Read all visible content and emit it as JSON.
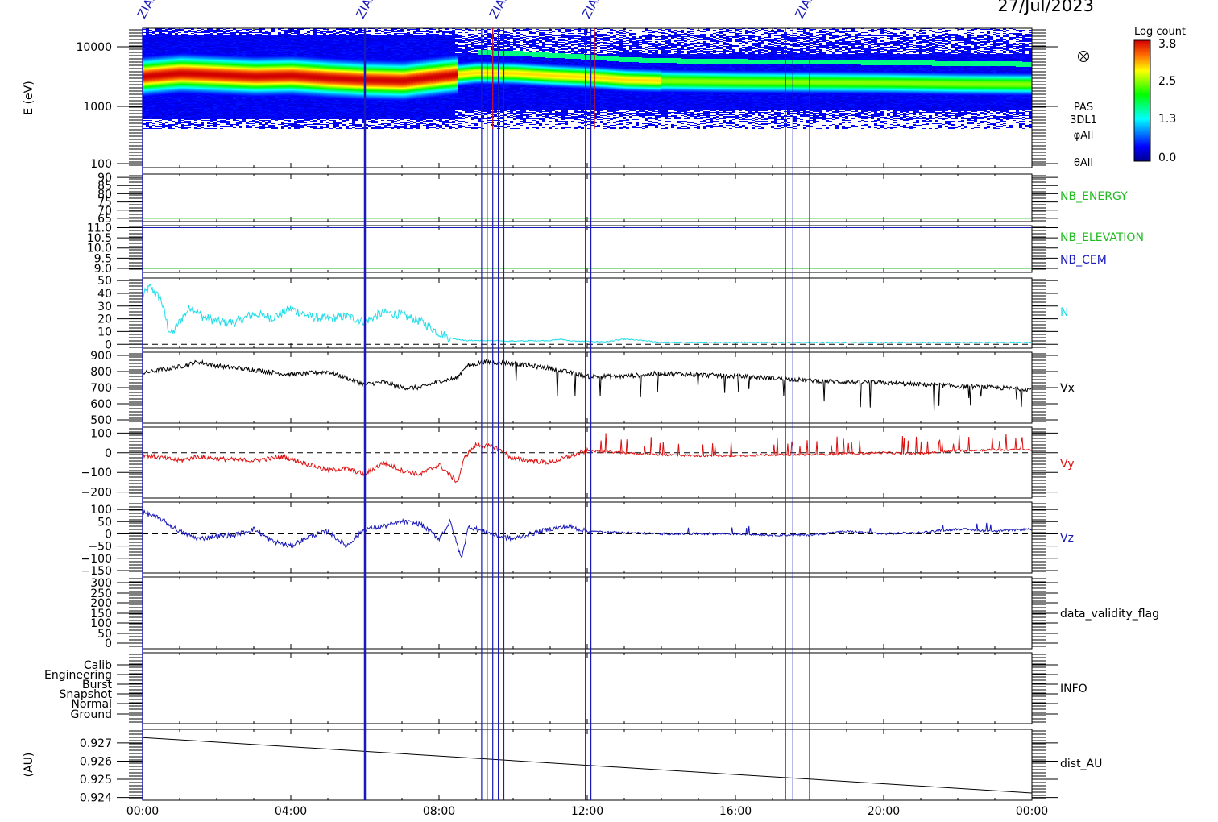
{
  "date_label": "27/Jul/2023",
  "colorbar": {
    "title": "Log count",
    "ticks": [
      "3.8",
      "2.5",
      "1.3",
      "0.0"
    ]
  },
  "markers": {
    "labels": [
      "ZIAS",
      "ZIAS",
      "ZIAS",
      "ZIAS",
      "ZIAS"
    ],
    "event_times_hours": [
      6.0,
      9.15,
      9.3,
      9.45,
      9.6,
      9.75,
      11.95,
      12.1,
      17.35,
      17.55,
      18.0
    ],
    "color": "#1a1ab8"
  },
  "chart_data": {
    "type": "line",
    "x_axis": {
      "range_hours": [
        0,
        24
      ],
      "tick_labels": [
        "00:00",
        "04:00",
        "08:00",
        "12:00",
        "16:00",
        "20:00",
        "00:00"
      ]
    },
    "panels": [
      {
        "id": "spectrogram",
        "type": "heatmap",
        "ylabel": "E (eV)",
        "yscale": "log",
        "ylim": [
          100,
          20000
        ],
        "tick_labels": [
          "10000",
          "1000",
          "100"
        ],
        "right_labels": [
          "PAS",
          "3DL1",
          "φAll",
          "θAll"
        ],
        "peak_energy_ev": [
          [
            0,
            3300
          ],
          [
            1,
            3700
          ],
          [
            2,
            3500
          ],
          [
            3,
            3300
          ],
          [
            4,
            3400
          ],
          [
            5,
            3100
          ],
          [
            6,
            2900
          ],
          [
            7,
            2800
          ],
          [
            8,
            3300
          ],
          [
            9,
            3800
          ],
          [
            10,
            3700
          ],
          [
            11,
            3400
          ],
          [
            12,
            3200
          ],
          [
            13,
            2900
          ],
          [
            14,
            2800
          ],
          [
            16,
            2700
          ],
          [
            18,
            2650
          ],
          [
            20,
            2600
          ],
          [
            22,
            2500
          ],
          [
            24,
            2450
          ]
        ],
        "colorscale_range": [
          0.0,
          3.8
        ]
      },
      {
        "id": "nb_energy",
        "ylim": [
          63,
          92
        ],
        "tick_labels": [
          "90",
          "85",
          "80",
          "75",
          "70",
          "65"
        ],
        "series": [
          {
            "name": "NB_ENERGY",
            "color": "#22bb22",
            "values": [
              [
                0,
                65
              ],
              [
                24,
                65
              ]
            ]
          }
        ]
      },
      {
        "id": "nb_elev",
        "ylim": [
          8.8,
          11.1
        ],
        "tick_labels": [
          "11.0",
          "10.5",
          "10.0",
          "9.5",
          "9.0"
        ],
        "series": [
          {
            "name": "NB_ELEVATION",
            "color": "#22bb22",
            "values": [
              [
                0,
                9.0
              ],
              [
                24,
                9.0
              ]
            ]
          },
          {
            "name": "NB_CEM",
            "color": "#1a1ab8",
            "values": [
              [
                0,
                11.0
              ],
              [
                24,
                11.0
              ]
            ]
          }
        ]
      },
      {
        "id": "density",
        "ylim": [
          -3,
          52
        ],
        "tick_labels": [
          "50",
          "40",
          "30",
          "20",
          "10",
          "0"
        ],
        "zero_line": 0,
        "series": [
          {
            "name": "N",
            "color": "#22dde8",
            "values": [
              [
                0,
                38
              ],
              [
                0.2,
                45
              ],
              [
                0.5,
                35
              ],
              [
                0.7,
                12
              ],
              [
                0.8,
                8
              ],
              [
                1.0,
                18
              ],
              [
                1.3,
                30
              ],
              [
                1.6,
                22
              ],
              [
                2.0,
                18
              ],
              [
                2.5,
                17
              ],
              [
                3.0,
                24
              ],
              [
                3.5,
                21
              ],
              [
                4.0,
                28
              ],
              [
                4.5,
                22
              ],
              [
                5.0,
                20
              ],
              [
                5.5,
                22
              ],
              [
                6.0,
                18
              ],
              [
                6.5,
                25
              ],
              [
                7.0,
                23
              ],
              [
                7.5,
                18
              ],
              [
                8.0,
                9
              ],
              [
                8.3,
                5
              ],
              [
                8.7,
                3
              ],
              [
                9.0,
                3
              ],
              [
                10.0,
                2.5
              ],
              [
                11.0,
                3
              ],
              [
                11.3,
                4
              ],
              [
                11.6,
                2.5
              ],
              [
                12.5,
                2
              ],
              [
                13.0,
                4
              ],
              [
                13.5,
                3
              ],
              [
                14.0,
                1.5
              ],
              [
                16.0,
                1.5
              ],
              [
                18.0,
                1.5
              ],
              [
                20.0,
                1.4
              ],
              [
                22.0,
                1.5
              ],
              [
                24.0,
                1.5
              ]
            ]
          }
        ]
      },
      {
        "id": "vx",
        "ylim": [
          480,
          920
        ],
        "tick_labels": [
          "900",
          "800",
          "700",
          "600",
          "500"
        ],
        "series": [
          {
            "name": "Vx",
            "color": "#000000",
            "values": [
              [
                0,
                790
              ],
              [
                1,
                830
              ],
              [
                1.5,
                860
              ],
              [
                2,
                835
              ],
              [
                3,
                810
              ],
              [
                4,
                780
              ],
              [
                5,
                800
              ],
              [
                6,
                720
              ],
              [
                6.5,
                735
              ],
              [
                7,
                700
              ],
              [
                7.5,
                700
              ],
              [
                8,
                740
              ],
              [
                8.5,
                760
              ],
              [
                8.7,
                830
              ],
              [
                9.2,
                860
              ],
              [
                10,
                850
              ],
              [
                11,
                820
              ],
              [
                12,
                770
              ],
              [
                13,
                770
              ],
              [
                14,
                790
              ],
              [
                15,
                780
              ],
              [
                16,
                770
              ],
              [
                17,
                760
              ],
              [
                18,
                745
              ],
              [
                19,
                735
              ],
              [
                20,
                730
              ],
              [
                21,
                720
              ],
              [
                22,
                710
              ],
              [
                23,
                700
              ],
              [
                24,
                690
              ]
            ]
          }
        ]
      },
      {
        "id": "vy",
        "ylim": [
          -230,
          130
        ],
        "tick_labels": [
          "100",
          "0",
          "-100",
          "-200"
        ],
        "zero_line": 0,
        "series": [
          {
            "name": "Vy",
            "color": "#dd1111",
            "values": [
              [
                0,
                -10
              ],
              [
                1,
                -40
              ],
              [
                1.5,
                -20
              ],
              [
                2,
                -30
              ],
              [
                3,
                -40
              ],
              [
                3.8,
                -20
              ],
              [
                4.5,
                -60
              ],
              [
                5,
                -90
              ],
              [
                5.5,
                -80
              ],
              [
                6,
                -110
              ],
              [
                6.5,
                -50
              ],
              [
                7,
                -90
              ],
              [
                7.5,
                -110
              ],
              [
                8,
                -60
              ],
              [
                8.5,
                -150
              ],
              [
                8.7,
                -20
              ],
              [
                9,
                40
              ],
              [
                9.5,
                30
              ],
              [
                10,
                -30
              ],
              [
                11,
                -50
              ],
              [
                11.5,
                -20
              ],
              [
                12,
                10
              ],
              [
                13,
                0
              ],
              [
                14,
                -10
              ],
              [
                15,
                -15
              ],
              [
                16,
                -15
              ],
              [
                17,
                -10
              ],
              [
                18,
                -10
              ],
              [
                19,
                -5
              ],
              [
                20,
                0
              ],
              [
                21,
                -5
              ],
              [
                22,
                10
              ],
              [
                23,
                15
              ],
              [
                24,
                15
              ]
            ]
          }
        ]
      },
      {
        "id": "vz",
        "ylim": [
          -160,
          130
        ],
        "tick_labels": [
          "100",
          "50",
          "0",
          "-50",
          "-100",
          "-150"
        ],
        "zero_line": 0,
        "series": [
          {
            "name": "Vz",
            "color": "#1a1ab8",
            "values": [
              [
                0,
                90
              ],
              [
                0.5,
                60
              ],
              [
                1,
                10
              ],
              [
                1.5,
                -20
              ],
              [
                2,
                -10
              ],
              [
                2.5,
                -5
              ],
              [
                3,
                20
              ],
              [
                3.5,
                -30
              ],
              [
                4,
                -50
              ],
              [
                4.5,
                -10
              ],
              [
                5,
                10
              ],
              [
                5.5,
                -50
              ],
              [
                6,
                20
              ],
              [
                6.5,
                30
              ],
              [
                7,
                50
              ],
              [
                7.5,
                40
              ],
              [
                8,
                -20
              ],
              [
                8.3,
                50
              ],
              [
                8.6,
                -100
              ],
              [
                8.8,
                30
              ],
              [
                9.2,
                10
              ],
              [
                9.6,
                -10
              ],
              [
                10,
                -20
              ],
              [
                11,
                20
              ],
              [
                11.5,
                30
              ],
              [
                12,
                10
              ],
              [
                13,
                5
              ],
              [
                14,
                0
              ],
              [
                16,
                0
              ],
              [
                17,
                -5
              ],
              [
                18,
                -5
              ],
              [
                19,
                10
              ],
              [
                20,
                0
              ],
              [
                21,
                5
              ],
              [
                22,
                20
              ],
              [
                23,
                10
              ],
              [
                24,
                20
              ]
            ]
          }
        ]
      },
      {
        "id": "validity",
        "ylim": [
          -20,
          300
        ],
        "tick_labels": [
          "300",
          "250",
          "200",
          "150",
          "100",
          "50",
          "0"
        ],
        "series": [
          {
            "name": "data_validity_flag",
            "color": "#000000",
            "values": []
          }
        ]
      },
      {
        "id": "info",
        "tick_labels": [
          "Calib",
          "Engineering",
          "Burst",
          "Snapshot",
          "Normal",
          "Ground"
        ],
        "series": [
          {
            "name": "INFO",
            "color": "#000000",
            "values": []
          }
        ]
      },
      {
        "id": "dist",
        "ylabel": "(AU)",
        "ylim": [
          0.92385,
          0.92775
        ],
        "tick_labels": [
          "0.927",
          "0.926",
          "0.925",
          "0.924"
        ],
        "series": [
          {
            "name": "dist_AU",
            "color": "#000000",
            "values": [
              [
                0,
                0.9273
              ],
              [
                24,
                0.92425
              ]
            ]
          }
        ]
      }
    ]
  }
}
